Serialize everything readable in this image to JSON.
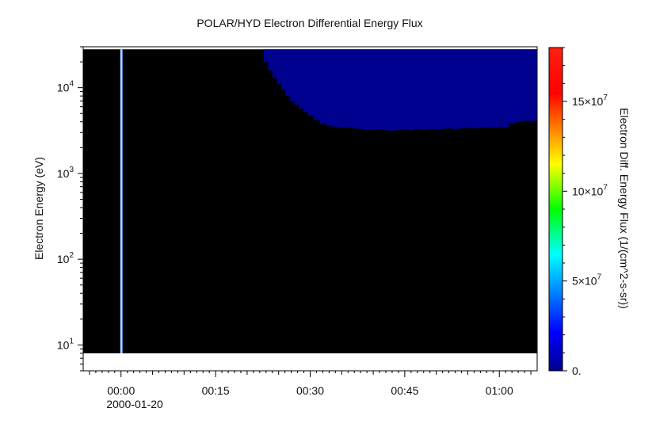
{
  "chart_data": {
    "type": "heatmap",
    "title": "POLAR/HYD  Electron Differential Energy Flux",
    "xlabel": "",
    "ylabel": "Electron Energy (eV)",
    "x_start_label": "2000-01-20",
    "x_ticks": [
      "00:00",
      "00:15",
      "00:30",
      "00:45",
      "01:00"
    ],
    "x_range_minutes": [
      -6,
      66
    ],
    "x_data_range_minutes": [
      -6,
      66
    ],
    "y_scale": "log",
    "y_range_eV": [
      5,
      30000
    ],
    "y_data_range_eV": [
      8,
      28000
    ],
    "y_ticks": [
      {
        "base": "10",
        "exp": "1",
        "value": 10
      },
      {
        "base": "10",
        "exp": "2",
        "value": 100
      },
      {
        "base": "10",
        "exp": "3",
        "value": 1000
      },
      {
        "base": "10",
        "exp": "4",
        "value": 10000
      }
    ],
    "colorbar": {
      "label": "Electron Diff. Energy Flux (1/(cm^2-s-sr))",
      "range": [
        0,
        180000000
      ],
      "colormap": "rainbow",
      "ticks": [
        {
          "value": 0,
          "text": "0."
        },
        {
          "value": 50000000,
          "base": "5×10",
          "exp": "7"
        },
        {
          "value": 100000000,
          "base": "10×10",
          "exp": "7"
        },
        {
          "value": 150000000,
          "base": "15×10",
          "exp": "7"
        }
      ]
    },
    "background_value": 0,
    "background_color": "#000000",
    "blue_region": {
      "value": 3000000,
      "color": "#00008f",
      "boundary_minutes": [
        22,
        22.6,
        23.3,
        24,
        24.7,
        25.4,
        26.1,
        26.8,
        27.5,
        28.2,
        28.9,
        29.6,
        30.5,
        31.5,
        32.5,
        33.5,
        34.5,
        35.5,
        36.5,
        37.5,
        38.5,
        39.5,
        40.5,
        41.5,
        42.5,
        43.5,
        44.5,
        45.5,
        46.5,
        47.5,
        48.5,
        49.5,
        50.5,
        51.5,
        52.5,
        53.5,
        54.5,
        55.5,
        56.5,
        57.5,
        58.5,
        59.5,
        60.5,
        61.5,
        62.5,
        63.5,
        64.5,
        65.5,
        66
      ],
      "boundary_lower_eV": [
        28000,
        20000,
        16000,
        13000,
        11000,
        9500,
        8000,
        7000,
        6300,
        5700,
        5200,
        4700,
        4200,
        3800,
        3600,
        3500,
        3450,
        3400,
        3350,
        3300,
        3250,
        3200,
        3250,
        3200,
        3150,
        3200,
        3250,
        3200,
        3300,
        3250,
        3300,
        3250,
        3300,
        3350,
        3300,
        3350,
        3400,
        3350,
        3400,
        3450,
        3400,
        3450,
        3500,
        3800,
        4000,
        4100,
        4100,
        4100,
        4100
      ]
    },
    "spike": {
      "minute": 0,
      "value": 30000000,
      "color": "#6fa8ff"
    }
  }
}
